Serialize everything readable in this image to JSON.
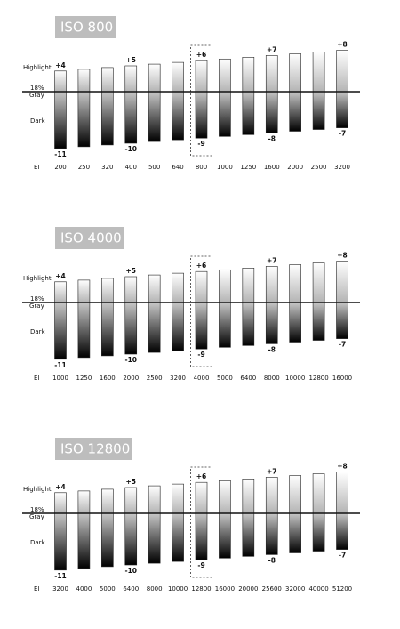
{
  "chart_data": [
    {
      "type": "bar",
      "title": "ISO 800",
      "row_labels": {
        "highlight": "Highlight",
        "gray": [
          "18%",
          "Gray"
        ],
        "dark": "Dark",
        "x": "EI"
      },
      "categories": [
        "200",
        "250",
        "320",
        "400",
        "500",
        "640",
        "800",
        "1000",
        "1250",
        "1600",
        "2000",
        "2500",
        "3200"
      ],
      "series": [
        {
          "name": "Highlight",
          "color": "#b4b4b4",
          "values": [
            4,
            4.33,
            4.67,
            5,
            5.33,
            5.67,
            6,
            6.33,
            6.67,
            7,
            7.33,
            7.67,
            8
          ],
          "value_labels": [
            "+4",
            null,
            null,
            "+5",
            null,
            null,
            "+6",
            null,
            null,
            "+7",
            null,
            null,
            "+8"
          ]
        },
        {
          "name": "Dark",
          "color": "#000000",
          "values": [
            -11,
            -10.67,
            -10.33,
            -10,
            -9.67,
            -9.33,
            -9,
            -8.67,
            -8.33,
            -8,
            -7.67,
            -7.33,
            -7
          ],
          "value_labels": [
            "-11",
            null,
            null,
            "-10",
            null,
            null,
            "-9",
            null,
            null,
            "-8",
            null,
            null,
            "-7"
          ]
        }
      ],
      "ylim": [
        -12,
        9
      ]
    },
    {
      "type": "bar",
      "title": "ISO 4000",
      "row_labels": {
        "highlight": "Highlight",
        "gray": [
          "18%",
          "Gray"
        ],
        "dark": "Dark",
        "x": "EI"
      },
      "categories": [
        "1000",
        "1250",
        "1600",
        "2000",
        "2500",
        "3200",
        "4000",
        "5000",
        "6400",
        "8000",
        "10000",
        "12800",
        "16000"
      ],
      "series": [
        {
          "name": "Highlight",
          "color": "#b4b4b4",
          "values": [
            4,
            4.33,
            4.67,
            5,
            5.33,
            5.67,
            6,
            6.33,
            6.67,
            7,
            7.33,
            7.67,
            8
          ],
          "value_labels": [
            "+4",
            null,
            null,
            "+5",
            null,
            null,
            "+6",
            null,
            null,
            "+7",
            null,
            null,
            "+8"
          ]
        },
        {
          "name": "Dark",
          "color": "#000000",
          "values": [
            -11,
            -10.67,
            -10.33,
            -10,
            -9.67,
            -9.33,
            -9,
            -8.67,
            -8.33,
            -8,
            -7.67,
            -7.33,
            -7
          ],
          "value_labels": [
            "-11",
            null,
            null,
            "-10",
            null,
            null,
            "-9",
            null,
            null,
            "-8",
            null,
            null,
            "-7"
          ]
        }
      ],
      "ylim": [
        -12,
        9
      ]
    },
    {
      "type": "bar",
      "title": "ISO 12800",
      "row_labels": {
        "highlight": "Highlight",
        "gray": [
          "18%",
          "Gray"
        ],
        "dark": "Dark",
        "x": "EI"
      },
      "categories": [
        "3200",
        "4000",
        "5000",
        "6400",
        "8000",
        "10000",
        "12800",
        "16000",
        "20000",
        "25600",
        "32000",
        "40000",
        "51200"
      ],
      "series": [
        {
          "name": "Highlight",
          "color": "#b4b4b4",
          "values": [
            4,
            4.33,
            4.67,
            5,
            5.33,
            5.67,
            6,
            6.33,
            6.67,
            7,
            7.33,
            7.67,
            8
          ],
          "value_labels": [
            "+4",
            null,
            null,
            "+5",
            null,
            null,
            "+6",
            null,
            null,
            "+7",
            null,
            null,
            "+8"
          ]
        },
        {
          "name": "Dark",
          "color": "#000000",
          "values": [
            -11,
            -10.67,
            -10.33,
            -10,
            -9.67,
            -9.33,
            -9,
            -8.67,
            -8.33,
            -8,
            -7.67,
            -7.33,
            -7
          ],
          "value_labels": [
            "-11",
            null,
            null,
            "-10",
            null,
            null,
            "-9",
            null,
            null,
            "-8",
            null,
            null,
            "-7"
          ]
        }
      ],
      "ylim": [
        -12,
        9
      ]
    }
  ]
}
